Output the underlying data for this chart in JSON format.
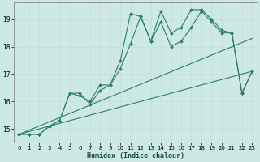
{
  "title": "",
  "xlabel": "Humidex (Indice chaleur)",
  "ylabel": "",
  "background_color": "#cce9e4",
  "line_color": "#2e7d6e",
  "grid_color": "#b8ddd8",
  "xlim": [
    -0.5,
    23.5
  ],
  "ylim": [
    14.5,
    19.6
  ],
  "yticks": [
    15,
    16,
    17,
    18,
    19
  ],
  "xticks": [
    0,
    1,
    2,
    3,
    4,
    5,
    6,
    7,
    8,
    9,
    10,
    11,
    12,
    13,
    14,
    15,
    16,
    17,
    18,
    19,
    20,
    21,
    22,
    23
  ],
  "series": [
    {
      "x": [
        0,
        1,
        2,
        3,
        4,
        5,
        6,
        7,
        8,
        9,
        10,
        11,
        12,
        13,
        14,
        15,
        16,
        17,
        18,
        19,
        20,
        21,
        22,
        23
      ],
      "y": [
        14.8,
        14.8,
        14.8,
        15.1,
        15.3,
        16.3,
        16.2,
        16.0,
        16.6,
        16.6,
        17.5,
        19.2,
        19.1,
        18.2,
        19.3,
        18.5,
        18.7,
        19.35,
        19.35,
        19.0,
        18.6,
        18.5,
        16.3,
        17.1
      ],
      "no_marker": false
    },
    {
      "x": [
        0,
        1,
        2,
        3,
        4,
        5,
        6,
        7,
        8,
        9,
        10,
        11,
        12,
        13,
        14,
        15,
        16,
        17,
        18,
        19,
        20,
        21,
        22,
        23
      ],
      "y": [
        14.8,
        14.8,
        14.8,
        15.1,
        15.3,
        16.3,
        16.3,
        15.9,
        16.4,
        16.6,
        17.2,
        18.1,
        19.1,
        18.2,
        18.9,
        18.0,
        18.2,
        18.7,
        19.3,
        18.9,
        18.5,
        18.5,
        16.3,
        17.1
      ],
      "no_marker": false
    },
    {
      "x": [
        0,
        23
      ],
      "y": [
        14.8,
        18.3
      ],
      "no_marker": true
    },
    {
      "x": [
        0,
        23
      ],
      "y": [
        14.8,
        17.1
      ],
      "no_marker": true
    }
  ]
}
